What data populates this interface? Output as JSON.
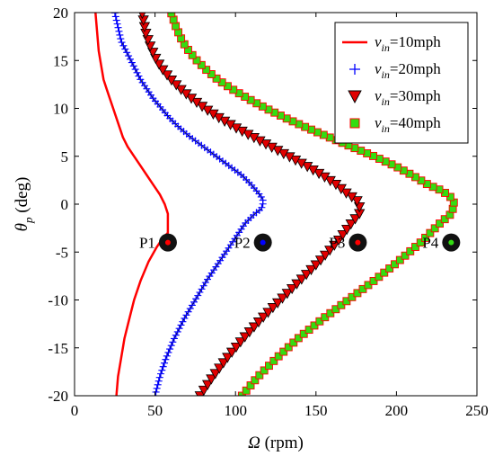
{
  "chart_data": {
    "type": "line",
    "xlabel": "Ω (rpm)",
    "ylabel": "θp (deg)",
    "xlim": [
      0,
      250
    ],
    "ylim": [
      -20,
      20
    ],
    "xticks": [
      0,
      50,
      100,
      150,
      200,
      250
    ],
    "yticks": [
      20,
      15,
      10,
      5,
      0,
      -5,
      -10,
      -15,
      -20
    ],
    "grid": false,
    "legend_position": "top-right",
    "series": [
      {
        "name": "v_in=10mph",
        "legend_main": "v",
        "legend_sub": "in",
        "legend_rest": "=10mph",
        "color": "#ff0000",
        "marker": "none",
        "x": [
          26,
          27,
          29,
          31,
          34,
          37,
          41,
          46,
          51,
          55,
          58,
          58,
          58,
          56,
          53,
          49,
          45,
          41,
          37,
          33,
          30,
          28,
          26,
          24,
          22,
          20,
          18,
          16,
          15,
          14,
          13
        ],
        "y": [
          -20,
          -18,
          -16,
          -14,
          -12,
          -10,
          -8,
          -6,
          -4.5,
          -3.5,
          -3,
          -2,
          -1,
          0,
          1,
          2,
          3,
          4,
          5,
          6,
          7,
          8,
          9,
          10,
          11,
          12,
          13,
          15,
          16,
          18,
          20
        ]
      },
      {
        "name": "v_in=20mph",
        "legend_main": "v",
        "legend_sub": "in",
        "legend_rest": "=20mph",
        "color": "#0000ff",
        "marker": "plus",
        "x": [
          50,
          53,
          57,
          62,
          68,
          75,
          82,
          90,
          98,
          106,
          112,
          116,
          117,
          117,
          115,
          110,
          104,
          96,
          88,
          80,
          72,
          65,
          59,
          54,
          49,
          45,
          41,
          38,
          35,
          32,
          29,
          27,
          25
        ],
        "y": [
          -20,
          -18,
          -16,
          -14,
          -12,
          -10,
          -8,
          -6,
          -4,
          -2,
          -1,
          -0.5,
          0,
          0.5,
          1,
          2,
          3,
          4,
          5,
          6,
          7,
          8,
          9,
          10,
          11,
          12,
          13,
          14,
          15,
          16,
          17,
          18.5,
          20
        ]
      },
      {
        "name": "v_in=30mph",
        "legend_main": "v",
        "legend_sub": "in",
        "legend_rest": "=30mph",
        "color": "#ff0000",
        "marker": "triangle-down",
        "x": [
          78,
          86,
          95,
          105,
          116,
          128,
          140,
          152,
          163,
          172,
          177,
          177,
          175,
          170,
          163,
          154,
          144,
          133,
          122,
          111,
          100,
          90,
          81,
          73,
          66,
          60,
          55,
          51,
          47,
          44,
          42
        ],
        "y": [
          -20,
          -18,
          -16,
          -14,
          -12,
          -10,
          -8,
          -6,
          -4,
          -2,
          -1,
          0,
          0.5,
          1,
          2,
          3,
          4,
          5,
          6,
          7,
          8,
          9,
          10,
          11,
          12,
          13,
          14,
          15,
          16.5,
          18,
          20
        ]
      },
      {
        "name": "v_in=40mph",
        "legend_main": "v",
        "legend_sub": "in",
        "legend_rest": "=40mph",
        "color": "#ff0000",
        "marker": "square",
        "x": [
          104,
          114,
          126,
          139,
          154,
          170,
          186,
          201,
          215,
          227,
          234,
          236,
          235,
          232,
          227,
          220,
          210,
          199,
          186,
          172,
          158,
          144,
          131,
          119,
          108,
          98,
          89,
          82,
          76,
          71,
          67,
          63,
          60
        ],
        "y": [
          -20,
          -18,
          -16,
          -14,
          -12,
          -10,
          -8,
          -6,
          -4,
          -2,
          -1,
          0,
          0.5,
          1,
          1.5,
          2,
          3,
          4,
          5,
          6,
          7,
          8,
          9,
          10,
          11,
          12,
          13,
          14,
          15,
          16,
          17,
          18.5,
          20
        ]
      }
    ],
    "annotations": [
      {
        "label": "P1",
        "x": 58,
        "y": -4
      },
      {
        "label": "P2",
        "x": 117,
        "y": -4
      },
      {
        "label": "P3",
        "x": 176,
        "y": -4
      },
      {
        "label": "P4",
        "x": 234,
        "y": -4
      }
    ]
  }
}
